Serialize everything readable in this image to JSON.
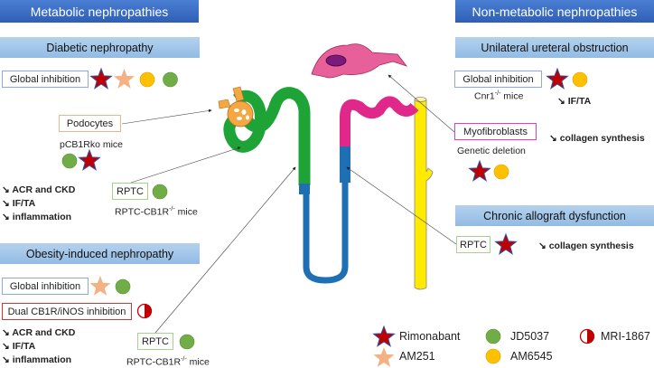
{
  "colors": {
    "rimonabant": "#c00000",
    "am251": "#f4b183",
    "jd5037": "#70ad47",
    "am6545": "#ffc000",
    "mri1867": "#c00000",
    "header": "#2f5fb5",
    "subheader": "#9dc3e6"
  },
  "left": {
    "title": "Metabolic nephropathies",
    "diabetic": {
      "title": "Diabetic nephropathy",
      "global_label": "Global inhibition",
      "global_drugs": [
        "rimonabant",
        "am251",
        "am6545",
        "jd5037"
      ],
      "podocytes_label": "Podocytes",
      "podocytes_model": "pCB1Rko mice",
      "podocytes_drugs": [
        "jd5037",
        "rimonabant"
      ],
      "rptc_label": "RPTC",
      "rptc_model": "RPTC-CB1R",
      "rptc_model_sup": "-/-",
      "rptc_model_suffix": " mice",
      "rptc_drugs": [
        "jd5037"
      ],
      "outcomes": [
        "↘ ACR and CKD",
        "↘ IF/TA",
        "↘ inflammation"
      ]
    },
    "obesity": {
      "title": "Obesity-induced nephropathy",
      "global_label": "Global inhibition",
      "global_drugs": [
        "am251",
        "jd5037"
      ],
      "dual_label": "Dual CB1R/iNOS inhibition",
      "dual_drugs": [
        "mri1867"
      ],
      "outcomes": [
        "↘ ACR and CKD",
        "↘ IF/TA",
        "↘ inflammation"
      ],
      "rptc_label": "RPTC",
      "rptc_model": "RPTC-CB1R",
      "rptc_model_sup": "-/-",
      "rptc_model_suffix": " mice",
      "rptc_drugs": [
        "jd5037"
      ]
    }
  },
  "right": {
    "title": "Non-metabolic nephropathies",
    "uuo": {
      "title": "Unilateral ureteral obstruction",
      "global_label": "Global inhibition",
      "global_model": "Cnr1",
      "global_model_sup": "-/-",
      "global_model_suffix": " mice",
      "global_drugs": [
        "rimonabant",
        "am6545"
      ],
      "global_outcome": "↘ IF/TA",
      "myo_label": "Myofibroblasts",
      "myo_outcome": "↘ collagen synthesis",
      "myo_model": "Genetic deletion",
      "myo_drugs": [
        "rimonabant",
        "am6545"
      ]
    },
    "chronic": {
      "title": "Chronic allograft dysfunction",
      "rptc_label": "RPTC",
      "rptc_drugs": [
        "rimonabant"
      ],
      "outcome": "↘ collagen synthesis"
    }
  },
  "legend": [
    {
      "key": "rimonabant",
      "label": "Rimonabant",
      "icon": "star"
    },
    {
      "key": "am251",
      "label": "AM251",
      "icon": "star"
    },
    {
      "key": "jd5037",
      "label": "JD5037",
      "icon": "circle"
    },
    {
      "key": "am6545",
      "label": "AM6545",
      "icon": "circle"
    },
    {
      "key": "mri1867",
      "label": "MRI-1867",
      "icon": "half-circle"
    }
  ]
}
